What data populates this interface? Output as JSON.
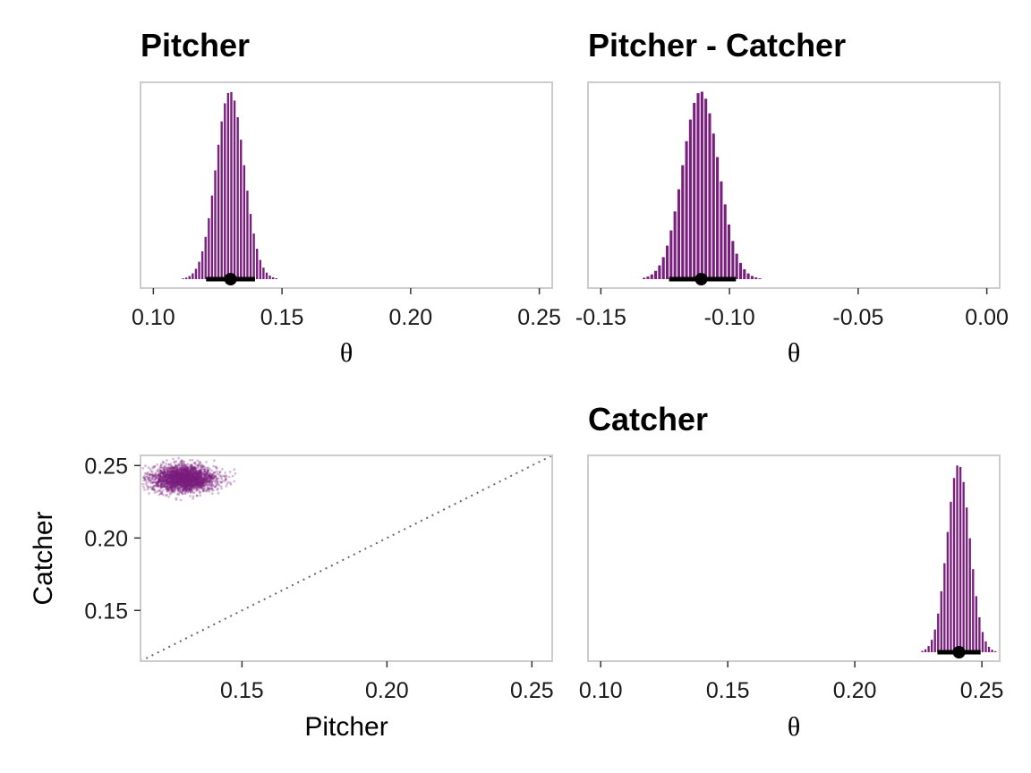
{
  "colors": {
    "fill": "#7b1f7f",
    "interval": "#000000",
    "frame": "#cccccc",
    "diagonal": "#666666"
  },
  "chart_data": [
    {
      "id": "pitcher",
      "type": "bar",
      "title": "Pitcher",
      "xlabel": "θ",
      "xlim": [
        0.095,
        0.255
      ],
      "xticks": [
        0.1,
        0.15,
        0.2,
        0.25
      ],
      "xtick_labels": [
        "0.10",
        "0.15",
        "0.20",
        "0.25"
      ],
      "histogram": {
        "mean": 0.13,
        "sd": 0.0055,
        "bin_width": 0.00125
      },
      "point_estimate": 0.13,
      "interval": [
        0.1205,
        0.1395
      ],
      "grid": false
    },
    {
      "id": "pitcher-catcher",
      "type": "bar",
      "title": "Pitcher - Catcher",
      "xlabel": "θ",
      "xlim": [
        -0.155,
        0.005
      ],
      "xticks": [
        -0.15,
        -0.1,
        -0.05,
        0.0
      ],
      "xtick_labels": [
        "-0.15",
        "-0.10",
        "-0.05",
        "0.00"
      ],
      "histogram": {
        "mean": -0.111,
        "sd": 0.007,
        "bin_width": 0.0015
      },
      "point_estimate": -0.111,
      "interval": [
        -0.1235,
        -0.0975
      ],
      "grid": false
    },
    {
      "id": "joint",
      "type": "scatter",
      "title": "",
      "xlabel": "Pitcher",
      "ylabel": "Catcher",
      "xlim": [
        0.115,
        0.257
      ],
      "ylim": [
        0.115,
        0.257
      ],
      "xticks": [
        0.15,
        0.2,
        0.25
      ],
      "xtick_labels": [
        "0.15",
        "0.20",
        "0.25"
      ],
      "yticks": [
        0.15,
        0.2,
        0.25
      ],
      "ytick_labels": [
        "0.15",
        "0.20",
        "0.25"
      ],
      "point_cloud": {
        "center": [
          0.13,
          0.241
        ],
        "sd": [
          0.0055,
          0.0045
        ]
      },
      "reference_line": "y = x",
      "grid": false
    },
    {
      "id": "catcher",
      "type": "bar",
      "title": "Catcher",
      "xlabel": "θ",
      "xlim": [
        0.095,
        0.257
      ],
      "xticks": [
        0.1,
        0.15,
        0.2,
        0.25
      ],
      "xtick_labels": [
        "0.10",
        "0.15",
        "0.20",
        "0.25"
      ],
      "histogram": {
        "mean": 0.241,
        "sd": 0.0045,
        "bin_width": 0.00125
      },
      "point_estimate": 0.241,
      "interval": [
        0.2325,
        0.2495
      ],
      "grid": false
    }
  ]
}
